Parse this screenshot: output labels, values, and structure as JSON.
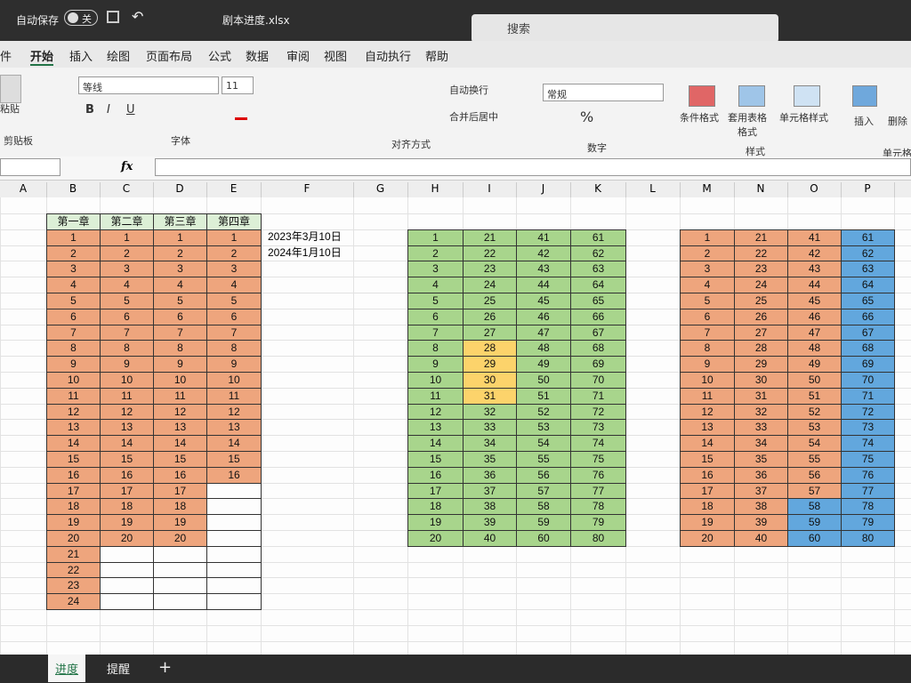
{
  "titlebar": {
    "autosave": "自动保存",
    "toggle": "关",
    "filename": "剧本进度.xlsx",
    "search": "搜索"
  },
  "menu": [
    "件",
    "开始",
    "插入",
    "绘图",
    "页面布局",
    "公式",
    "数据",
    "审阅",
    "视图",
    "自动执行",
    "帮助"
  ],
  "ribbon": {
    "clipboard": {
      "paste": "粘贴",
      "label": "剪贴板"
    },
    "font": {
      "name": "等线",
      "size": "11",
      "label": "字体"
    },
    "alignment": {
      "wrap": "自动换行",
      "merge": "合并后居中",
      "label": "对齐方式"
    },
    "number": {
      "format": "常规",
      "label": "数字"
    },
    "styles": {
      "conditional": "条件格式",
      "table": "套用表格格式",
      "cell": "单元格样式",
      "label": "样式"
    },
    "cells": {
      "insert": "插入",
      "delete": "删除",
      "label": "单元格"
    }
  },
  "formula_bar": {
    "fx": "fx"
  },
  "columns": [
    "A",
    "B",
    "C",
    "D",
    "E",
    "F",
    "G",
    "H",
    "I",
    "J",
    "K",
    "L",
    "M",
    "N",
    "O",
    "P"
  ],
  "sheet": {
    "table1": {
      "headers": [
        "第一章",
        "第二章",
        "第三章",
        "第四章"
      ],
      "columns": [
        [
          1,
          2,
          3,
          4,
          5,
          6,
          7,
          8,
          9,
          10,
          11,
          12,
          13,
          14,
          15,
          16,
          17,
          18,
          19,
          20,
          21,
          22,
          23,
          24
        ],
        [
          1,
          2,
          3,
          4,
          5,
          6,
          7,
          8,
          9,
          10,
          11,
          12,
          13,
          14,
          15,
          16,
          17,
          18,
          19,
          20
        ],
        [
          1,
          2,
          3,
          4,
          5,
          6,
          7,
          8,
          9,
          10,
          11,
          12,
          13,
          14,
          15,
          16,
          17,
          18,
          19,
          20
        ],
        [
          1,
          2,
          3,
          4,
          5,
          6,
          7,
          8,
          9,
          10,
          11,
          12,
          13,
          14,
          15,
          16
        ]
      ]
    },
    "dates": [
      "2023年3月10日",
      "2024年1月10日"
    ],
    "table2": {
      "columns": [
        [
          1,
          2,
          3,
          4,
          5,
          6,
          7,
          8,
          9,
          10,
          11,
          12,
          13,
          14,
          15,
          16,
          17,
          18,
          19,
          20
        ],
        [
          21,
          22,
          23,
          24,
          25,
          26,
          27,
          28,
          29,
          30,
          31,
          32,
          33,
          34,
          35,
          36,
          37,
          38,
          39,
          40
        ],
        [
          41,
          42,
          43,
          44,
          45,
          46,
          47,
          48,
          49,
          50,
          51,
          52,
          53,
          54,
          55,
          56,
          57,
          58,
          59,
          60
        ],
        [
          61,
          62,
          63,
          64,
          65,
          66,
          67,
          68,
          69,
          70,
          71,
          72,
          73,
          74,
          75,
          76,
          77,
          78,
          79,
          80
        ]
      ]
    },
    "table3": {
      "columns": [
        [
          1,
          2,
          3,
          4,
          5,
          6,
          7,
          8,
          9,
          10,
          11,
          12,
          13,
          14,
          15,
          16,
          17,
          18,
          19,
          20
        ],
        [
          21,
          22,
          23,
          24,
          25,
          26,
          27,
          28,
          29,
          30,
          31,
          32,
          33,
          34,
          35,
          36,
          37,
          38,
          39,
          40
        ],
        [
          41,
          42,
          43,
          44,
          45,
          46,
          47,
          48,
          49,
          50,
          51,
          52,
          53,
          54,
          55,
          56,
          57,
          58,
          59,
          60
        ],
        [
          61,
          62,
          63,
          64,
          65,
          66,
          67,
          68,
          69,
          70,
          71,
          72,
          73,
          74,
          75,
          76,
          77,
          78,
          79,
          80
        ]
      ]
    }
  },
  "tabs": [
    "进度",
    "提醒"
  ]
}
